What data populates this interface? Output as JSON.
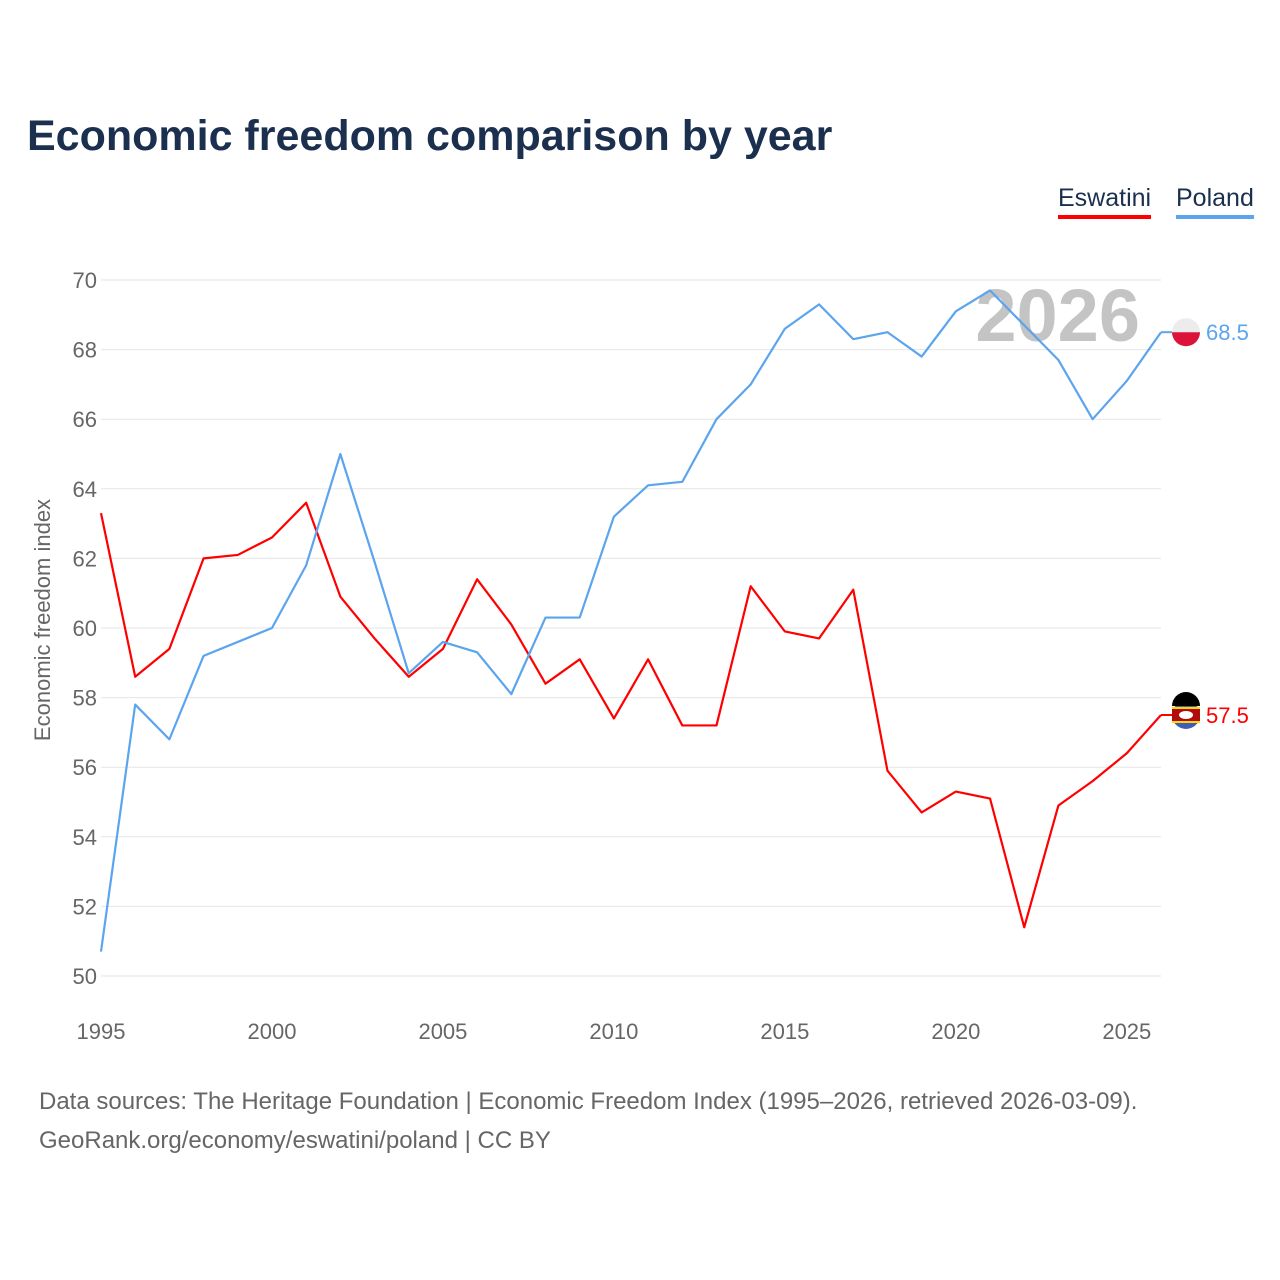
{
  "chart_data": {
    "type": "line",
    "title": "Economic freedom comparison by year",
    "xlabel": "",
    "ylabel": "Economic freedom index",
    "watermark_year": "2026",
    "xlim": [
      1995,
      2026
    ],
    "ylim": [
      50,
      70
    ],
    "x_ticks": [
      1995,
      2000,
      2005,
      2010,
      2015,
      2020,
      2025
    ],
    "y_ticks": [
      50,
      52,
      54,
      56,
      58,
      60,
      62,
      64,
      66,
      68,
      70
    ],
    "grid": true,
    "legend_placement": "top-right",
    "x": [
      1995,
      1996,
      1997,
      1998,
      1999,
      2000,
      2001,
      2002,
      2003,
      2004,
      2005,
      2006,
      2007,
      2008,
      2009,
      2010,
      2011,
      2012,
      2013,
      2014,
      2015,
      2016,
      2017,
      2018,
      2019,
      2020,
      2021,
      2022,
      2023,
      2024,
      2025,
      2026
    ],
    "series": [
      {
        "name": "Eswatini",
        "color": "#ff0000",
        "end_label": "57.5",
        "values": [
          63.3,
          58.6,
          59.4,
          62.0,
          62.1,
          62.6,
          63.6,
          60.9,
          59.7,
          58.6,
          59.4,
          61.4,
          60.1,
          58.4,
          59.1,
          57.4,
          59.1,
          57.2,
          57.2,
          61.2,
          59.9,
          59.7,
          61.1,
          55.9,
          54.7,
          55.3,
          55.1,
          51.4,
          54.9,
          55.6,
          56.4,
          57.5
        ]
      },
      {
        "name": "Poland",
        "color": "#5ba4ee",
        "end_label": "68.5",
        "values": [
          50.7,
          57.8,
          56.8,
          59.2,
          59.6,
          60.0,
          61.8,
          65.0,
          61.9,
          58.7,
          59.6,
          59.3,
          58.1,
          60.3,
          60.3,
          63.2,
          64.1,
          64.2,
          66.0,
          67.0,
          68.6,
          69.3,
          68.3,
          68.5,
          67.8,
          69.1,
          69.7,
          68.7,
          67.7,
          66.0,
          67.1,
          68.5
        ]
      }
    ]
  },
  "footer": {
    "source": "Data sources: The Heritage Foundation | Economic Freedom Index (1995–2026, retrieved 2026-03-09).",
    "credit": "GeoRank.org/economy/eswatini/poland | CC BY"
  }
}
